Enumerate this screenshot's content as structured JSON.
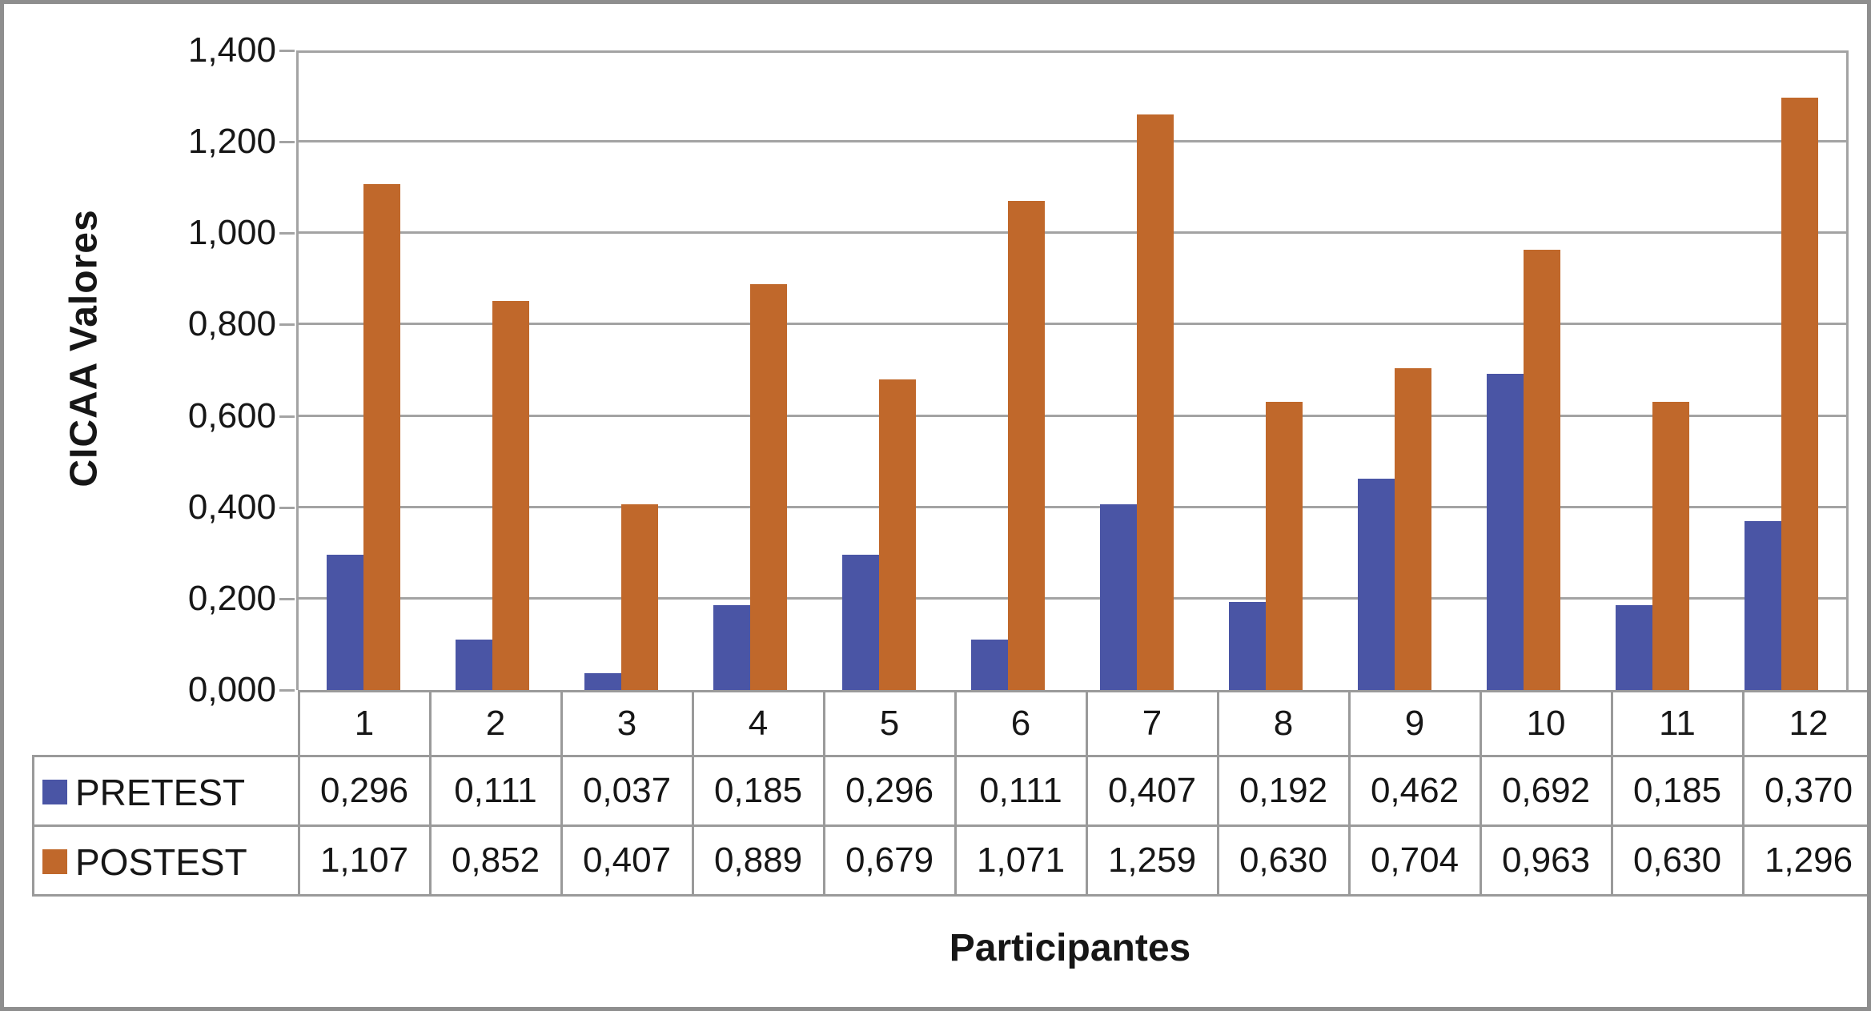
{
  "chart": {
    "ylabel": "CICAA Valores",
    "xlabel": "Participantes"
  },
  "chart_data": {
    "type": "bar",
    "title": "",
    "xlabel": "Participantes",
    "ylabel": "CICAA Valores",
    "categories": [
      "1",
      "2",
      "3",
      "4",
      "5",
      "6",
      "7",
      "8",
      "9",
      "10",
      "11",
      "12"
    ],
    "series": [
      {
        "name": "PRETEST",
        "color": "#4A55A5",
        "values": [
          0.296,
          0.111,
          0.037,
          0.185,
          0.296,
          0.111,
          0.407,
          0.192,
          0.462,
          0.692,
          0.185,
          0.37
        ],
        "labels": [
          "0,296",
          "0,111",
          "0,037",
          "0,185",
          "0,296",
          "0,111",
          "0,407",
          "0,192",
          "0,462",
          "0,692",
          "0,185",
          "0,370"
        ]
      },
      {
        "name": "POSTEST",
        "color": "#C0682B",
        "values": [
          1.107,
          0.852,
          0.407,
          0.889,
          0.679,
          1.071,
          1.259,
          0.63,
          0.704,
          0.963,
          0.63,
          1.296
        ],
        "labels": [
          "1,107",
          "0,852",
          "0,407",
          "0,889",
          "0,679",
          "1,071",
          "1,259",
          "0,630",
          "0,704",
          "0,963",
          "0,630",
          "1,296"
        ]
      }
    ],
    "ylim": [
      0,
      1.4
    ],
    "ytick_step": 0.2,
    "ytick_labels": [
      "0,000",
      "0,200",
      "0,400",
      "0,600",
      "0,800",
      "1,000",
      "1,200",
      "1,400"
    ],
    "decimal_separator": ",",
    "grid": "horizontal-only",
    "legend_position": "data-table-left-column"
  },
  "colors": {
    "pretest": "#4A55A5",
    "postest": "#C0682B",
    "gridline": "#A3A3A3",
    "table_border": "#9A9A9A",
    "frame": "#8E8E8E",
    "text": "#161616"
  }
}
